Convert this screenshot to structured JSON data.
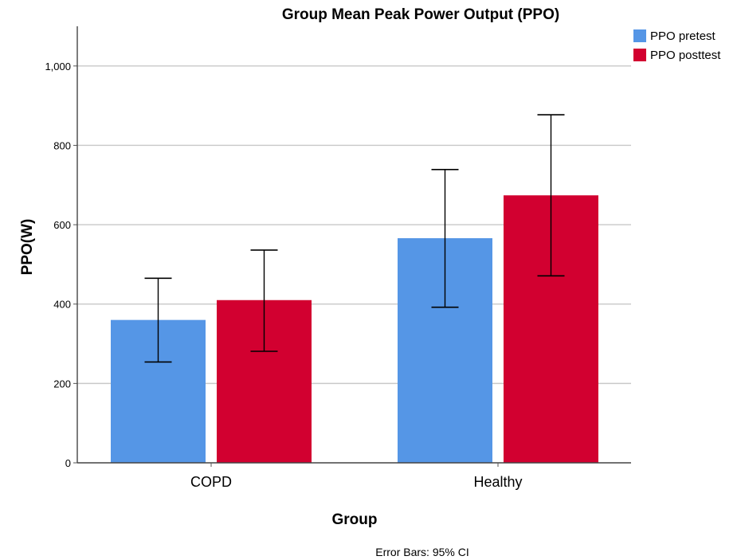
{
  "chart_data": {
    "type": "bar",
    "title": "Group Mean Peak Power Output (PPO)",
    "xlabel": "Group",
    "ylabel": "PPO(W)",
    "footnote": "Error Bars: 95% CI",
    "categories": [
      "COPD",
      "Healthy"
    ],
    "ylim": [
      0,
      1100
    ],
    "yticks": [
      0,
      200,
      400,
      600,
      800,
      1000
    ],
    "ytick_labels": [
      "0",
      "200",
      "400",
      "600",
      "800",
      "1,000"
    ],
    "grid": true,
    "legend_position": "top-right",
    "series": [
      {
        "name": "PPO pretest",
        "color": "#5596e6",
        "values": [
          360,
          566
        ],
        "ci_lower": [
          254,
          392
        ],
        "ci_upper": [
          465,
          739
        ]
      },
      {
        "name": "PPO posttest",
        "color": "#d20030",
        "values": [
          410,
          674
        ],
        "ci_lower": [
          281,
          471
        ],
        "ci_upper": [
          536,
          877
        ]
      }
    ]
  }
}
